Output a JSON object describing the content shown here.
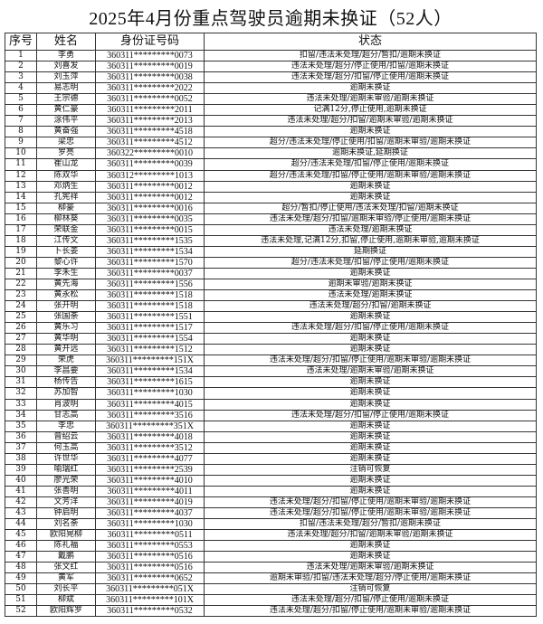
{
  "title": "2025年4月份重点驾驶员逾期未换证（52人）",
  "headers": [
    "序号",
    "姓名",
    "身份证号码",
    "状态"
  ],
  "rows": [
    [
      "1",
      "李勇",
      "360311*********0073",
      "扣留/违法未处理/超分/暂扣/逾期未换证"
    ],
    [
      "2",
      "刘喜发",
      "360311*********0019",
      "违法未处理/超分/停止使用/扣留/逾期未换证"
    ],
    [
      "3",
      "刘玉萍",
      "360311*********0038",
      "违法未处理/超分/扣留/停止使用/逾期未换证"
    ],
    [
      "4",
      "易志明",
      "360311*********2022",
      "逾期未换证"
    ],
    [
      "5",
      "王宗德",
      "360311*********0052",
      "违法未处理/逾期未审验/逾期未换证"
    ],
    [
      "6",
      "黄仁豪",
      "360311*********2011",
      "记满12分,停止使用,逾期未换证"
    ],
    [
      "7",
      "涂伟平",
      "360311*********2013",
      "违法未处理/超分/扣留/逾期未审验/逾期未换证"
    ],
    [
      "8",
      "黄奋强",
      "360311*********4518",
      "逾期未换证"
    ],
    [
      "9",
      "梁忠",
      "360311*********4512",
      "超分/违法未处理/停止使用/扣留/逾期未审验/逾期未换证"
    ],
    [
      "10",
      "罗亮",
      "360322*********0010",
      "逾期未换证,延期换证"
    ],
    [
      "11",
      "崔山龙",
      "360311*********0039",
      "超分/违法未处理/扣留/停止使用/逾期未换证"
    ],
    [
      "12",
      "陈双华",
      "360312*********1013",
      "超分/违法未处理/扣留/停止使用/逾期未审验/逾期未换证"
    ],
    [
      "13",
      "邓炳生",
      "360311*********0012",
      "逾期未换证"
    ],
    [
      "14",
      "孔宪祥",
      "360311*********0012",
      "逾期未换证"
    ],
    [
      "15",
      "柳豪",
      "360311*********0016",
      "超分/暂扣/停止使用/违法未处理/扣留/逾期未换证"
    ],
    [
      "16",
      "柳林葵",
      "360311*********0035",
      "违法未处理/超分/扣留/逾期未审验/停止使用/逾期未换证"
    ],
    [
      "17",
      "荣联金",
      "360311*********0015",
      "违法未处理/逾期未换证"
    ],
    [
      "18",
      "江传文",
      "360311*********1535",
      "违法未处理,记满12分,扣留,停止使用,逾期未审验,逾期未换证"
    ],
    [
      "19",
      "卜长姜",
      "360311*********1534",
      "延期换证"
    ],
    [
      "20",
      "黎心许",
      "360311*********1570",
      "超分/违法未处理/扣留/停止使用/逾期未换证"
    ],
    [
      "21",
      "李禾生",
      "360311*********0037",
      "逾期未换证"
    ],
    [
      "22",
      "黄先海",
      "360311*********1556",
      "逾期未审验/逾期未换证"
    ],
    [
      "23",
      "黄永松",
      "360311*********1518",
      "违法未处理/逾期未换证"
    ],
    [
      "24",
      "张开明",
      "360311*********1518",
      "违法未处理/超分/扣留/逾期未换证"
    ],
    [
      "25",
      "张国荼",
      "360311*********1551",
      "逾期未换证"
    ],
    [
      "26",
      "黄乐习",
      "360311*********1517",
      "违法未处理/超分/扣留/停止使用/逾期未换证"
    ],
    [
      "27",
      "黄华明",
      "360311*********1554",
      "逾期未换证"
    ],
    [
      "28",
      "黄开远",
      "360311*********1512",
      "逾期未换证"
    ],
    [
      "29",
      "荣虎",
      "360311*********151X",
      "违法未处理/超分/扣留/停止使用/逾期未审验/逾期未换证"
    ],
    [
      "30",
      "李昌要",
      "360311*********1534",
      "违法未处理/逾期未审验/逾期未换证"
    ],
    [
      "31",
      "杨传告",
      "360311*********1615",
      "逾期未换证"
    ],
    [
      "32",
      "苏加智",
      "360311*********1030",
      "逾期未换证"
    ],
    [
      "33",
      "肖波明",
      "360311*********4015",
      "逾期未换证"
    ],
    [
      "34",
      "甘志高",
      "360311*********3516",
      "违法未处理/超分/扣留/停止使用/逾期未换证"
    ],
    [
      "35",
      "李忠",
      "360311*********351X",
      "逾期未换证"
    ],
    [
      "36",
      "曾绍云",
      "360311*********4018",
      "逾期未换证"
    ],
    [
      "37",
      "何玉高",
      "360311*********3512",
      "逾期未换证"
    ],
    [
      "38",
      "许世华",
      "360311*********4077",
      "逾期未换证"
    ],
    [
      "39",
      "喻瑞红",
      "360311*********2539",
      "注销可恢复"
    ],
    [
      "40",
      "廖光荣",
      "360311*********4010",
      "逾期未换证"
    ],
    [
      "41",
      "张善明",
      "360311*********4011",
      "逾期未换证"
    ],
    [
      "42",
      "文芳洋",
      "360311*********4019",
      "违法未处理/超分/扣留/停止使用/逾期未审验/逾期未换证"
    ],
    [
      "43",
      "钟启明",
      "360311*********4037",
      "违法未处理/超分/扣留/停止使用/逾期未审验/逾期未换证"
    ],
    [
      "44",
      "刘名荼",
      "360311*********1030",
      "扣留/违法未处理/超分/暂扣/逾期未换证"
    ],
    [
      "45",
      "欧阳晃柳",
      "360311*********0511",
      "违法未处理/超分/扣留/逾期未审验/逾期未换证"
    ],
    [
      "46",
      "陈礼福",
      "360311*********0553",
      "逾期未换证"
    ],
    [
      "47",
      "戴鹏",
      "360311*********0516",
      "逾期未换证"
    ],
    [
      "48",
      "张文红",
      "360311*********0516",
      "违法未处理/逾期未审验/逾期未换证"
    ],
    [
      "49",
      "黄军",
      "360311*********0652",
      "逾期未审验/扣留/违法未处理/超分/停止使用/逾期未换证"
    ],
    [
      "50",
      "刘长平",
      "360311*********051X",
      "注销可恢复"
    ],
    [
      "51",
      "柳斌",
      "360311*********101X",
      "违法未处理/超分/扣留/停止使用/逾期未换证"
    ],
    [
      "52",
      "欧阳辉罗",
      "360311*********0532",
      "违法未处理/超分/扣留/停止使用/逾期未审验/逾期未换证"
    ]
  ]
}
